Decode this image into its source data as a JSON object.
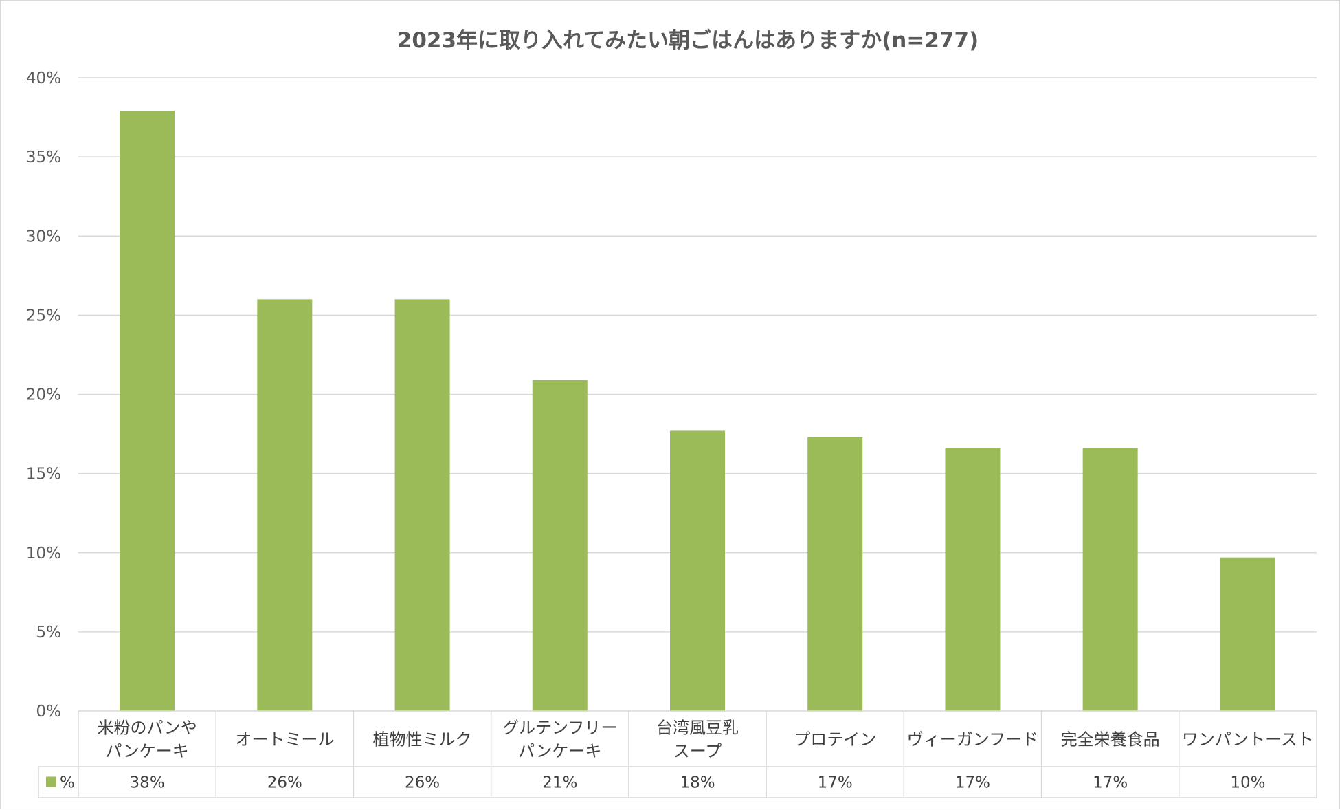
{
  "chart_data": {
    "type": "bar",
    "title": "2023年に取り入れてみたい朝ごはんはありますか(n=277)",
    "categories": [
      [
        "米粉のパンや",
        "パンケーキ"
      ],
      [
        "オートミール"
      ],
      [
        "植物性ミルク"
      ],
      [
        "グルテンフリー",
        "パンケーキ"
      ],
      [
        "台湾風豆乳",
        "スープ"
      ],
      [
        "プロテイン"
      ],
      [
        "ヴィーガンフード"
      ],
      [
        "完全栄養食品"
      ],
      [
        "ワンパントースト"
      ]
    ],
    "series": [
      {
        "name": "%",
        "values": [
          37.9,
          26.0,
          26.0,
          20.9,
          17.7,
          17.3,
          16.6,
          16.6,
          9.7
        ],
        "labels": [
          "38%",
          "26%",
          "26%",
          "21%",
          "18%",
          "17%",
          "17%",
          "17%",
          "10%"
        ],
        "color": "#9bbb59"
      }
    ],
    "yticks": [
      "0%",
      "5%",
      "10%",
      "15%",
      "20%",
      "25%",
      "30%",
      "35%",
      "40%"
    ],
    "ylim": [
      0,
      40
    ],
    "ytick_step": 5,
    "grid": true,
    "data_table": true,
    "xlabel": "",
    "ylabel": ""
  },
  "colors": {
    "bar": "#9bbb59",
    "grid": "#d9d9d9",
    "text": "#595959"
  }
}
